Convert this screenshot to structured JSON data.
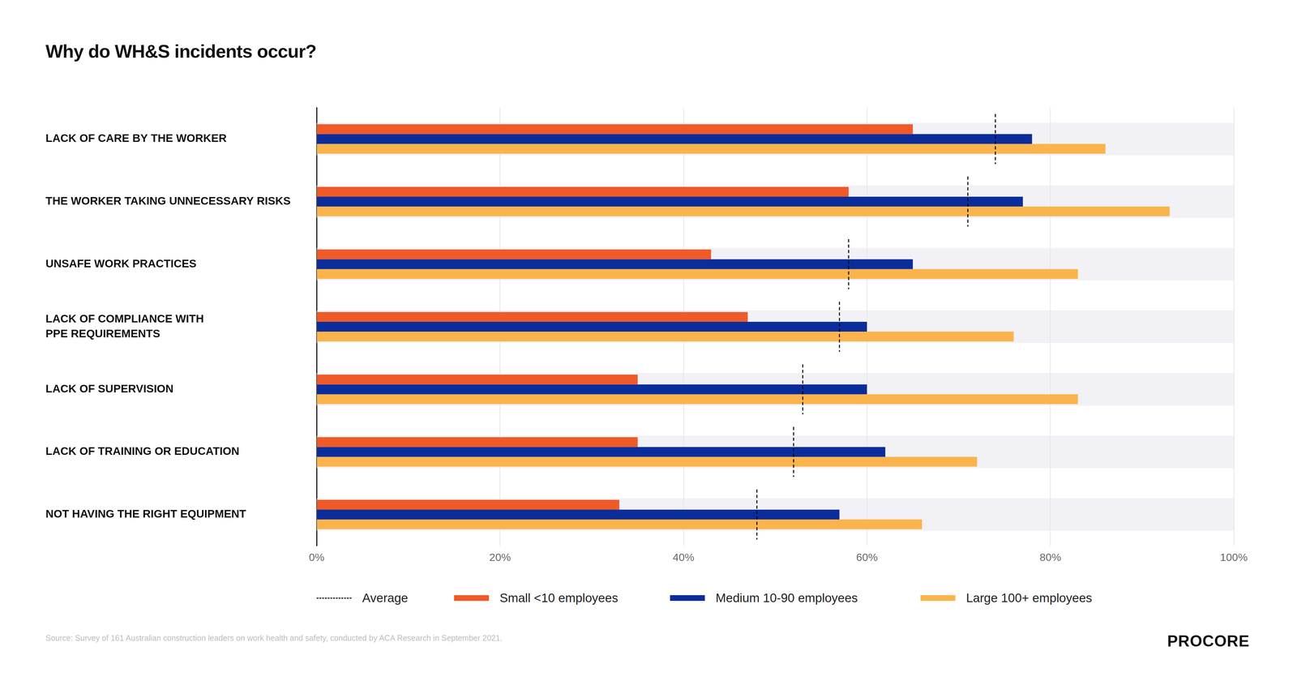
{
  "chart_data": {
    "type": "bar",
    "orientation": "horizontal",
    "title": "Why do WH&S incidents occur?",
    "categories": [
      "LACK OF CARE BY THE WORKER",
      "THE WORKER TAKING UNNECESSARY RISKS",
      "UNSAFE WORK PRACTICES",
      "LACK OF COMPLIANCE WITH\nPPE REQUIREMENTS",
      "LACK OF SUPERVISION",
      "LACK OF TRAINING OR EDUCATION",
      "NOT HAVING THE RIGHT EQUIPMENT"
    ],
    "series": [
      {
        "name": "Average",
        "type": "marker",
        "line_style": "dashed",
        "color": "#000000",
        "values": [
          74,
          71,
          58,
          57,
          53,
          52,
          48
        ]
      },
      {
        "name": "Small <10 employees",
        "color": "#f05a28",
        "values": [
          65,
          58,
          43,
          47,
          35,
          35,
          33
        ]
      },
      {
        "name": "Medium 10-90 employees",
        "color": "#0b2d9c",
        "values": [
          78,
          77,
          65,
          60,
          60,
          62,
          57
        ]
      },
      {
        "name": "Large 100+ employees",
        "color": "#fbb44c",
        "values": [
          86,
          93,
          83,
          76,
          83,
          72,
          66
        ]
      }
    ],
    "xlim": [
      0,
      100
    ],
    "xticks": [
      {
        "value": 0,
        "label": "0%"
      },
      {
        "value": 20,
        "label": "20%"
      },
      {
        "value": 40,
        "label": "40%"
      },
      {
        "value": 60,
        "label": "60%"
      },
      {
        "value": 80,
        "label": "80%"
      },
      {
        "value": 100,
        "label": "100%"
      }
    ],
    "grid": true,
    "legend": "bottom",
    "source": "Source: Survey of 161 Australian construction leaders on work health and safety, conducted by ACA Research in September 2021.",
    "logo": "PROCORE"
  }
}
